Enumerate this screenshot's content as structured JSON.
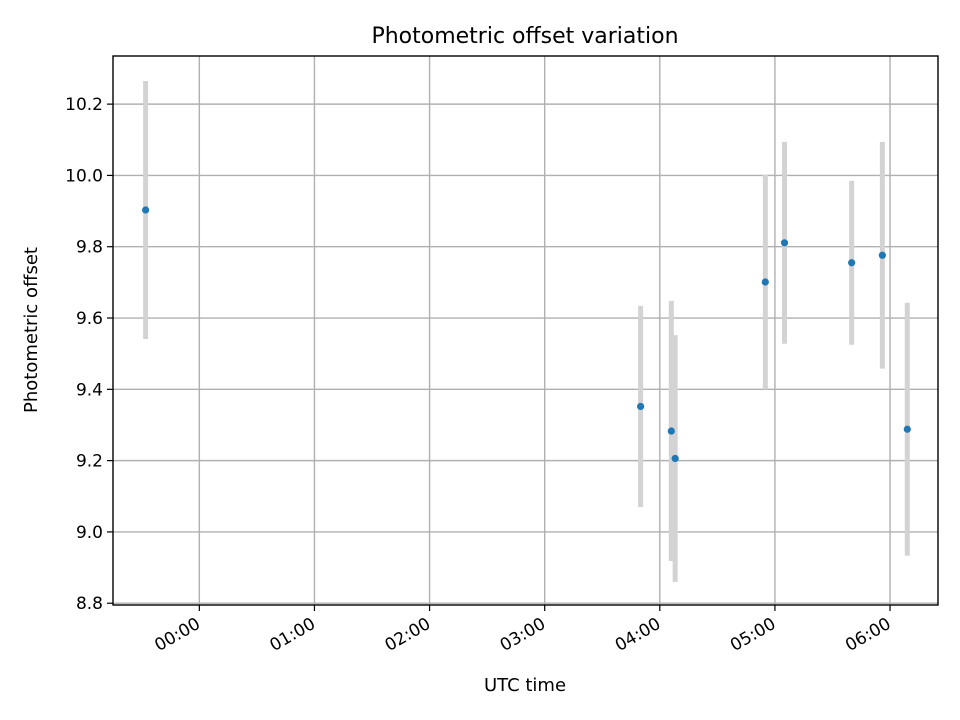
{
  "chart_data": {
    "type": "scatter",
    "title": "Photometric offset variation",
    "xlabel": "UTC time",
    "ylabel": "Photometric offset",
    "x_tick_labels": [
      "00:00",
      "01:00",
      "02:00",
      "03:00",
      "04:00",
      "05:00",
      "06:00"
    ],
    "x_ticks": [
      "00:00",
      "01:00",
      "02:00",
      "03:00",
      "04:00",
      "05:00",
      "06:00"
    ],
    "xlim": [
      "23:15",
      "06:25"
    ],
    "y_tick_labels": [
      "8.8",
      "9.0",
      "9.2",
      "9.4",
      "9.6",
      "9.8",
      "10.0",
      "10.2"
    ],
    "y_ticks": [
      8.8,
      9.0,
      9.2,
      9.4,
      9.6,
      9.8,
      10.0,
      10.2
    ],
    "ylim": [
      8.795,
      10.335
    ],
    "grid": true,
    "marker_color": "#1f77b4",
    "errorbar_color": "#d3d3d3",
    "series": [
      {
        "x": [
          "23:32",
          "03:50",
          "04:06",
          "04:08",
          "04:55",
          "05:05",
          "05:40",
          "05:56",
          "06:09"
        ],
        "y": [
          9.903,
          9.352,
          9.283,
          9.206,
          9.701,
          9.811,
          9.755,
          9.776,
          9.288
        ],
        "yerr": [
          0.362,
          0.282,
          0.365,
          0.346,
          0.301,
          0.283,
          0.23,
          0.318,
          0.355
        ]
      }
    ]
  }
}
